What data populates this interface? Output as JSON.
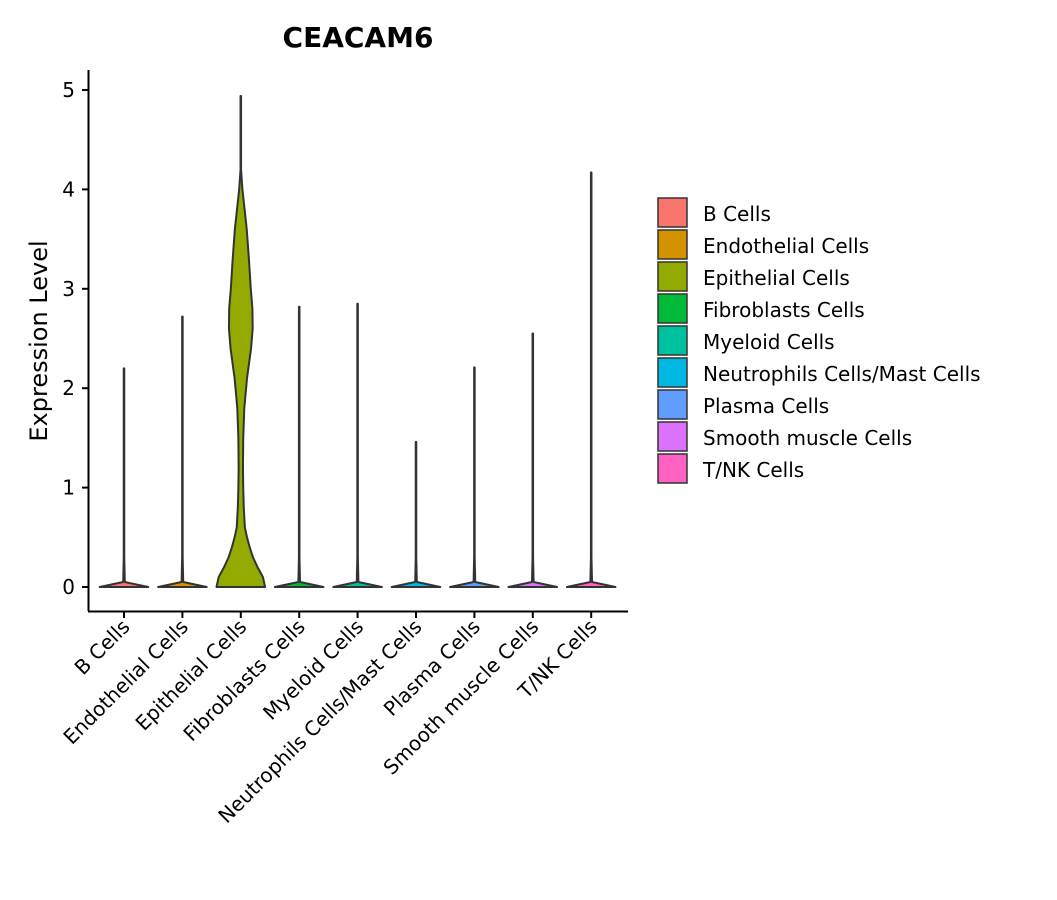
{
  "chart_data": {
    "type": "violin",
    "title": "CEACAM6",
    "xlabel": "",
    "ylabel": "Expression Level",
    "ylim": [
      -0.25,
      5.2
    ],
    "yticks": [
      0,
      1,
      2,
      3,
      4,
      5
    ],
    "ytick_labels": [
      "0",
      "1",
      "2",
      "3",
      "4",
      "5"
    ],
    "grid": false,
    "legend_position": "right",
    "categories": [
      "B Cells",
      "Endothelial Cells",
      "Epithelial Cells",
      "Fibroblasts Cells",
      "Myeloid Cells",
      "Neutrophils Cells/Mast Cells",
      "Plasma Cells",
      "Smooth muscle Cells",
      "T/NK Cells"
    ],
    "colors": [
      "#F8766D",
      "#D39200",
      "#93AA00",
      "#00BA38",
      "#00C19F",
      "#00B9E3",
      "#619CFF",
      "#DB72FB",
      "#FF61C3"
    ],
    "max_values": [
      2.2,
      2.72,
      4.94,
      2.82,
      2.85,
      1.46,
      2.21,
      2.55,
      4.17
    ],
    "min_values": [
      0,
      0,
      0,
      0,
      0,
      0,
      0,
      0,
      0
    ],
    "density_profiles": [
      [
        [
          0,
          0.9
        ],
        [
          0.05,
          0.03
        ],
        [
          0.3,
          0.01
        ],
        [
          2.2,
          0.005
        ]
      ],
      [
        [
          0,
          0.9
        ],
        [
          0.05,
          0.03
        ],
        [
          0.3,
          0.01
        ],
        [
          2.72,
          0.005
        ]
      ],
      [
        [
          0,
          0.9
        ],
        [
          0.1,
          0.82
        ],
        [
          0.2,
          0.62
        ],
        [
          0.3,
          0.45
        ],
        [
          0.4,
          0.33
        ],
        [
          0.5,
          0.23
        ],
        [
          0.6,
          0.15
        ],
        [
          0.8,
          0.11
        ],
        [
          1.0,
          0.09
        ],
        [
          1.2,
          0.08
        ],
        [
          1.5,
          0.09
        ],
        [
          1.8,
          0.13
        ],
        [
          2.1,
          0.23
        ],
        [
          2.4,
          0.38
        ],
        [
          2.6,
          0.44
        ],
        [
          2.8,
          0.43
        ],
        [
          3.0,
          0.37
        ],
        [
          3.3,
          0.3
        ],
        [
          3.6,
          0.22
        ],
        [
          3.8,
          0.14
        ],
        [
          4.0,
          0.06
        ],
        [
          4.2,
          0.01
        ],
        [
          4.94,
          0.005
        ]
      ],
      [
        [
          0,
          0.9
        ],
        [
          0.05,
          0.03
        ],
        [
          0.3,
          0.01
        ],
        [
          2.82,
          0.005
        ]
      ],
      [
        [
          0,
          0.9
        ],
        [
          0.05,
          0.03
        ],
        [
          0.3,
          0.01
        ],
        [
          2.85,
          0.005
        ]
      ],
      [
        [
          0,
          0.9
        ],
        [
          0.05,
          0.03
        ],
        [
          0.3,
          0.01
        ],
        [
          1.46,
          0.005
        ]
      ],
      [
        [
          0,
          0.9
        ],
        [
          0.05,
          0.03
        ],
        [
          0.3,
          0.01
        ],
        [
          2.21,
          0.005
        ]
      ],
      [
        [
          0,
          0.9
        ],
        [
          0.05,
          0.03
        ],
        [
          0.3,
          0.01
        ],
        [
          2.55,
          0.005
        ]
      ],
      [
        [
          0,
          0.9
        ],
        [
          0.05,
          0.03
        ],
        [
          0.3,
          0.01
        ],
        [
          4.17,
          0.005
        ]
      ]
    ]
  }
}
